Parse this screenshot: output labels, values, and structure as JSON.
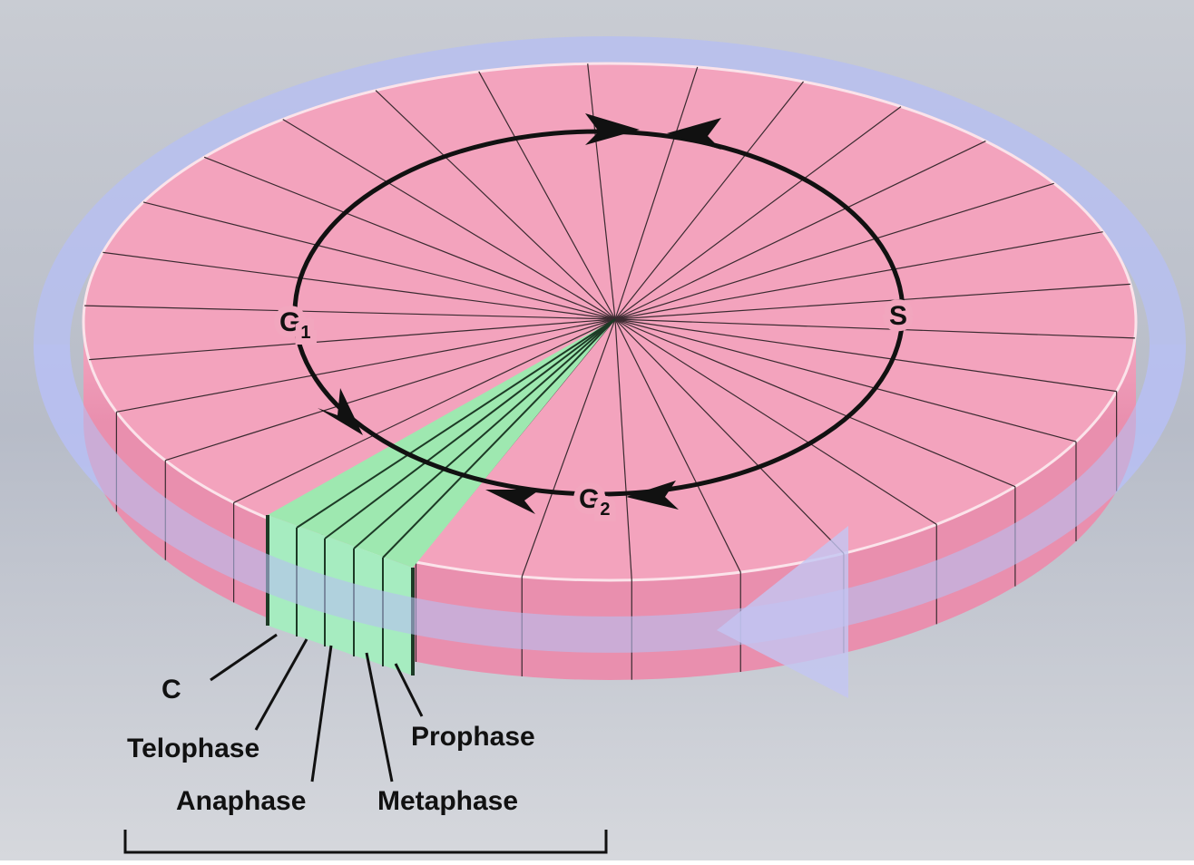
{
  "labels": {
    "g1": {
      "text": "G",
      "subscript": "1"
    },
    "s": "S",
    "g2": {
      "text": "G",
      "subscript": "2"
    }
  },
  "phases": [
    "C",
    "Telophase",
    "Anaphase",
    "Metaphase",
    "Prophase"
  ]
}
